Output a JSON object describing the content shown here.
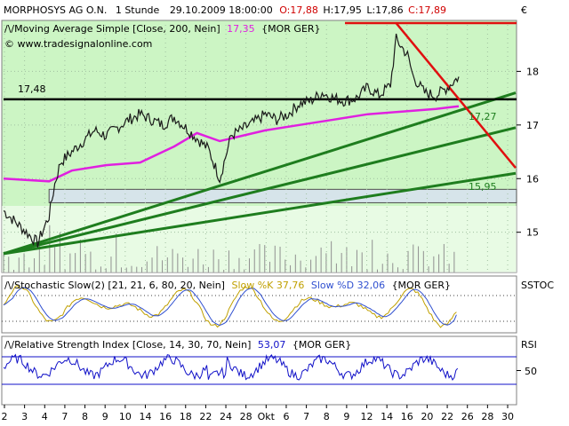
{
  "header": {
    "symbol": "MORPHOSYS AG O.N.",
    "interval": "1 Stunde",
    "datetime": "29.10.2009 18:00:00",
    "ohlc": {
      "open": "O:17,88",
      "high": "H:17,95",
      "low": "L:17,86",
      "close": "C:17,89"
    },
    "currency": "€"
  },
  "main_panel": {
    "indicator_label": "Moving Average Simple [Close, 200, Nein]",
    "indicator_value": "17,35",
    "indicator_source": "{MOR GER}",
    "watermark": "www.tradesignalonline.com",
    "level_label": "17,48",
    "annot_a": "17,27",
    "annot_b": "15,95"
  },
  "stoch_panel": {
    "label_prefix": "Stochastic Slow(2) [21, 21, 6, 80, 20, Nein]",
    "k_label": "Slow %K 37,76",
    "d_label": "Slow %D 32,06",
    "source": "{MOR GER}",
    "axis_label": "SSTOC"
  },
  "rsi_panel": {
    "label_prefix": "Relative Strength Index [Close, 14, 30, 70, Nein]",
    "value": "53,07",
    "source": "{MOR GER}",
    "axis_label": "RSI",
    "tick": "50"
  },
  "colors": {
    "bg_green": "#ccf5c4",
    "price": "#1a1a1a",
    "ma": "#e020e0",
    "trend_green": "#1e7d1e",
    "trend_red": "#e01010",
    "support_box": "#d6e4ea",
    "stoch_k": "#c0a000",
    "stoch_d": "#3050d0",
    "rsi": "#1010c8"
  },
  "chart_data": {
    "type": "line",
    "x_ticks": [
      "2",
      "3",
      "4",
      "7",
      "8",
      "9",
      "10",
      "14",
      "16",
      "18",
      "22",
      "24",
      "28",
      "Okt",
      "6",
      "7",
      "8",
      "9",
      "12",
      "14",
      "16",
      "20",
      "22",
      "26",
      "28",
      "30"
    ],
    "y_ticks": [
      "18",
      "17",
      "16",
      "15"
    ],
    "price_range": [
      14.25,
      18.95
    ],
    "price_path": [
      [
        0,
        15.4
      ],
      [
        3,
        15.1
      ],
      [
        6,
        14.8
      ],
      [
        8,
        15.3
      ],
      [
        9,
        15.9
      ],
      [
        10,
        16.3
      ],
      [
        14,
        16.7
      ],
      [
        16,
        16.9
      ],
      [
        18,
        16.8
      ],
      [
        22,
        17.1
      ],
      [
        24,
        17.2
      ],
      [
        28,
        17.0
      ],
      [
        30,
        17.15
      ],
      [
        36,
        16.55
      ],
      [
        38,
        16.0
      ],
      [
        40,
        16.8
      ],
      [
        44,
        17.05
      ],
      [
        46,
        17.2
      ],
      [
        48,
        17.1
      ],
      [
        50,
        17.2
      ],
      [
        52,
        17.4
      ],
      [
        54,
        17.45
      ],
      [
        56,
        17.6
      ],
      [
        58,
        17.5
      ],
      [
        60,
        17.45
      ],
      [
        62,
        17.5
      ],
      [
        64,
        17.7
      ],
      [
        66,
        17.55
      ],
      [
        68,
        17.75
      ],
      [
        69,
        18.6
      ],
      [
        70,
        18.45
      ],
      [
        71,
        18.3
      ],
      [
        72,
        17.9
      ],
      [
        74,
        17.6
      ],
      [
        76,
        17.55
      ],
      [
        78,
        17.7
      ],
      [
        80,
        17.9
      ]
    ],
    "ma_path": [
      [
        0,
        16.0
      ],
      [
        8,
        15.95
      ],
      [
        12,
        16.15
      ],
      [
        18,
        16.25
      ],
      [
        24,
        16.3
      ],
      [
        30,
        16.6
      ],
      [
        34,
        16.85
      ],
      [
        38,
        16.7
      ],
      [
        42,
        16.8
      ],
      [
        46,
        16.9
      ],
      [
        52,
        17.0
      ],
      [
        58,
        17.1
      ],
      [
        64,
        17.2
      ],
      [
        70,
        17.25
      ],
      [
        76,
        17.3
      ],
      [
        80,
        17.35
      ]
    ],
    "horizontal_levels": [
      {
        "value": 17.48,
        "style": "black"
      },
      {
        "value": 18.9,
        "style": "red",
        "from": 60
      }
    ],
    "support_zone": [
      15.55,
      15.8
    ],
    "trendlines_green": [
      [
        [
          0,
          14.6
        ],
        [
          90,
          17.6
        ]
      ],
      [
        [
          0,
          14.6
        ],
        [
          90,
          16.95
        ]
      ],
      [
        [
          0,
          14.6
        ],
        [
          90,
          16.1
        ]
      ]
    ],
    "trendline_red": [
      [
        69,
        18.9
      ],
      [
        90,
        16.2
      ]
    ],
    "stochastic": {
      "k_last": 37.76,
      "d_last": 32.06
    },
    "rsi": {
      "last": 53.07,
      "levels": [
        30,
        70
      ],
      "tick": 50
    }
  }
}
